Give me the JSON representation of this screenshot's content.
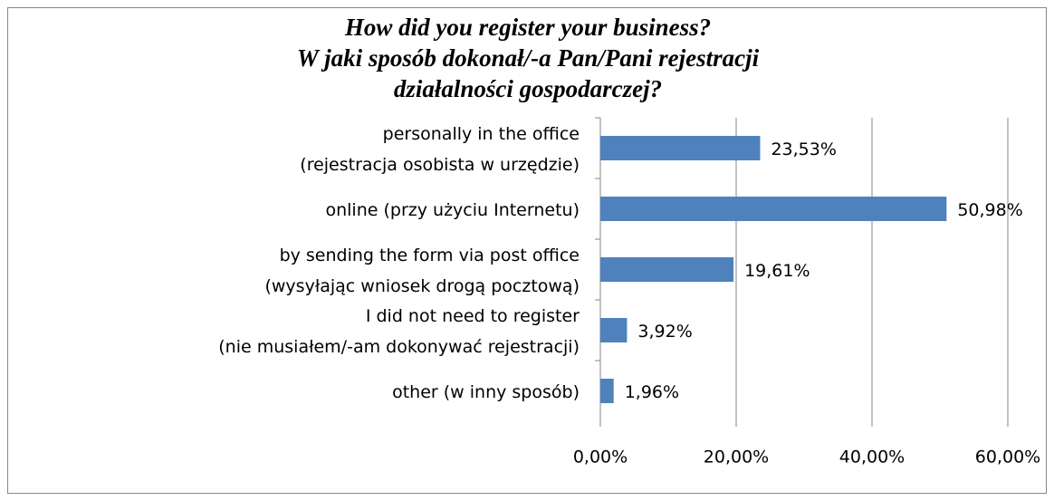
{
  "chart_data": {
    "type": "bar",
    "orientation": "horizontal",
    "title": [
      "How did you register your business?",
      "W jaki sposób dokonał/-a Pan/Pani rejestracji",
      "działalności gospodarczej?"
    ],
    "categories": [
      [
        "personally in the office",
        "(rejestracja osobista w urzędzie)"
      ],
      [
        "online (przy użyciu Internetu)"
      ],
      [
        "by sending the form via post office",
        "(wysyłając wniosek drogą pocztową)"
      ],
      [
        "I did not need to register",
        "(nie musiałem/-am dokonywać rejestracji)"
      ],
      [
        "other (w inny sposób)"
      ]
    ],
    "values": [
      23.53,
      50.98,
      19.61,
      3.92,
      1.96
    ],
    "value_labels": [
      "23,53%",
      "50,98%",
      "19,61%",
      "3,92%",
      "1,96%"
    ],
    "color": "#4f81bd",
    "xlim": [
      0,
      60
    ],
    "xticks": [
      {
        "value": 0,
        "label": "0,00%"
      },
      {
        "value": 20,
        "label": "20,00%"
      },
      {
        "value": 40,
        "label": "40,00%"
      },
      {
        "value": 60,
        "label": "60,00%"
      }
    ],
    "grid": true
  }
}
